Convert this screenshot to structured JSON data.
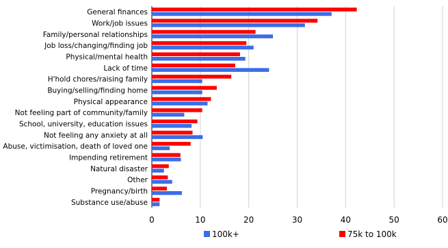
{
  "chart_data": {
    "type": "bar",
    "orientation": "horizontal",
    "categories": [
      "General finances",
      "Work/job issues",
      "Family/personal relationships",
      "Job loss/changing/finding job",
      "Physical/mental health",
      "Lack of time",
      "H'hold chores/raising family",
      "Buying/selling/finding home",
      "Physical appearance",
      "Not feeling part of community/family",
      "School, university, education issues",
      "Not feeling any anxiety at all",
      "Abuse, victimisation, death of loved one",
      "Impending retirement",
      "Natural disaster",
      "Other",
      "Pregnancy/birth",
      "Substance use/abuse"
    ],
    "series": [
      {
        "name": "75k to 100k",
        "color": "#ff0000",
        "values": [
          42.3,
          34.2,
          21.4,
          19.5,
          18.2,
          17.2,
          16.4,
          13.4,
          12.2,
          10.4,
          9.4,
          8.4,
          8.0,
          5.9,
          3.5,
          3.3,
          3.1,
          1.6
        ]
      },
      {
        "name": "100k+",
        "color": "#3b6de8",
        "values": [
          37.1,
          31.6,
          25.0,
          21.0,
          19.3,
          24.2,
          10.4,
          10.4,
          11.5,
          6.7,
          8.2,
          10.5,
          3.7,
          6.0,
          2.5,
          4.2,
          6.2,
          1.6
        ]
      }
    ],
    "xlim": [
      0,
      60
    ],
    "xticks": [
      "0",
      "10",
      "20",
      "30",
      "40",
      "50",
      "60"
    ],
    "grid": true,
    "legend_position": "bottom"
  }
}
